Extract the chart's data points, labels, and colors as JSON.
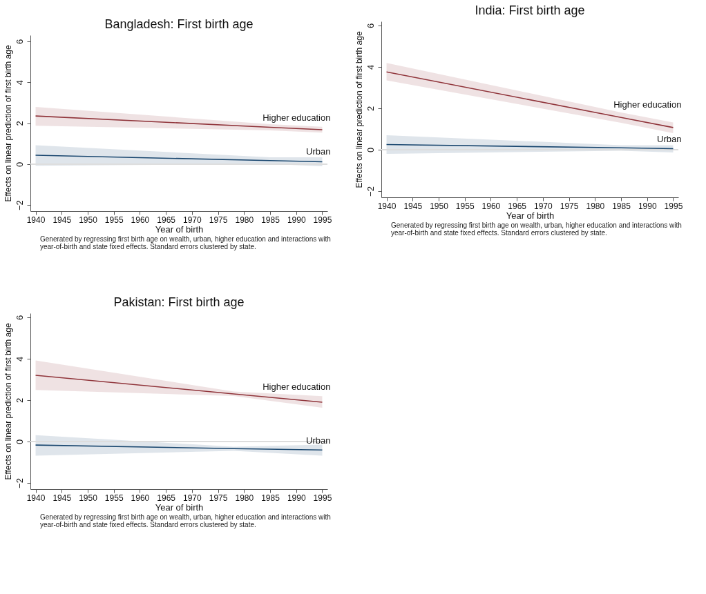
{
  "chart_data": [
    {
      "type": "line",
      "title": "Bangladesh: First birth age",
      "xlabel": "Year of birth",
      "ylabel": "Effects on linear prediction of first birth age",
      "xlim": [
        1939,
        1996
      ],
      "xticks": [
        1940,
        1945,
        1950,
        1955,
        1960,
        1965,
        1970,
        1975,
        1980,
        1985,
        1990,
        1995
      ],
      "ylim": [
        -2.3,
        6.3
      ],
      "yticks": [
        -2,
        0,
        2,
        4,
        6
      ],
      "grid": false,
      "legend": false,
      "ref_lines": [
        {
          "axis": "y",
          "value": 0,
          "color": "#dddddd"
        }
      ],
      "annotations": [
        "Generated by regressing first birth age on wealth, urban, higher education and interactions with year-of-birth and state fixed effects. Standard errors clustered by state."
      ],
      "series": [
        {
          "name": "Higher education",
          "color": "#90353b",
          "x": [
            1940,
            1985,
            1995
          ],
          "values": [
            2.35,
            1.8,
            1.68
          ],
          "lower": [
            1.87,
            1.65,
            1.54
          ],
          "upper": [
            2.79,
            1.95,
            1.82
          ]
        },
        {
          "name": "Urban",
          "color": "#1a476f",
          "x": [
            1940,
            1985,
            1995
          ],
          "values": [
            0.43,
            0.17,
            0.11
          ],
          "lower": [
            -0.08,
            0.0,
            -0.11
          ],
          "upper": [
            0.92,
            0.33,
            0.33
          ]
        }
      ]
    },
    {
      "type": "line",
      "title": "India: First birth age",
      "xlabel": "Year of birth",
      "ylabel": "Effects on linear prediction of first birth age",
      "xlim": [
        1939,
        1996
      ],
      "xticks": [
        1940,
        1945,
        1950,
        1955,
        1960,
        1965,
        1970,
        1975,
        1980,
        1985,
        1990,
        1995
      ],
      "ylim": [
        -2.3,
        6.2
      ],
      "yticks": [
        -2,
        0,
        2,
        4,
        6
      ],
      "grid": false,
      "legend": false,
      "ref_lines": [
        {
          "axis": "y",
          "value": 0,
          "color": "#dddddd"
        }
      ],
      "annotations": [
        "Generated by regressing first birth age on wealth, urban, higher education and interactions with year-of-birth and state fixed effects. Standard errors clustered by state."
      ],
      "series": [
        {
          "name": "Higher education",
          "color": "#90353b",
          "x": [
            1940,
            1985,
            1995
          ],
          "values": [
            3.76,
            1.56,
            1.07
          ],
          "lower": [
            3.35,
            1.3,
            0.8
          ],
          "upper": [
            4.19,
            1.8,
            1.32
          ]
        },
        {
          "name": "Urban",
          "color": "#1a476f",
          "x": [
            1940,
            1985,
            1995
          ],
          "values": [
            0.25,
            0.09,
            0.05
          ],
          "lower": [
            -0.2,
            -0.05,
            -0.13
          ],
          "upper": [
            0.7,
            0.22,
            0.22
          ]
        }
      ]
    },
    {
      "type": "line",
      "title": "Pakistan: First birth age",
      "xlabel": "Year of birth",
      "ylabel": "Effects on linear prediction of first birth age",
      "xlim": [
        1939,
        1996
      ],
      "xticks": [
        1940,
        1945,
        1950,
        1955,
        1960,
        1965,
        1970,
        1975,
        1980,
        1985,
        1990,
        1995
      ],
      "ylim": [
        -2.3,
        6.2
      ],
      "yticks": [
        -2,
        0,
        2,
        4,
        6
      ],
      "grid": false,
      "legend": false,
      "ref_lines": [
        {
          "axis": "y",
          "value": 0,
          "color": "#dddddd"
        }
      ],
      "annotations": [
        "Generated by regressing first birth age on wealth, urban, higher education and interactions with year-of-birth and state fixed effects. Standard errors clustered by state."
      ],
      "series": [
        {
          "name": "Higher education",
          "color": "#90353b",
          "x": [
            1940,
            1978,
            1995
          ],
          "values": [
            3.2,
            2.3,
            1.9
          ],
          "lower": [
            2.49,
            2.2,
            1.63
          ],
          "upper": [
            3.92,
            2.42,
            2.19
          ]
        },
        {
          "name": "Urban",
          "color": "#1a476f",
          "x": [
            1940,
            1978,
            1995
          ],
          "values": [
            -0.17,
            -0.34,
            -0.41
          ],
          "lower": [
            -0.68,
            -0.45,
            -0.68
          ],
          "upper": [
            0.31,
            -0.25,
            -0.15
          ]
        }
      ]
    }
  ]
}
